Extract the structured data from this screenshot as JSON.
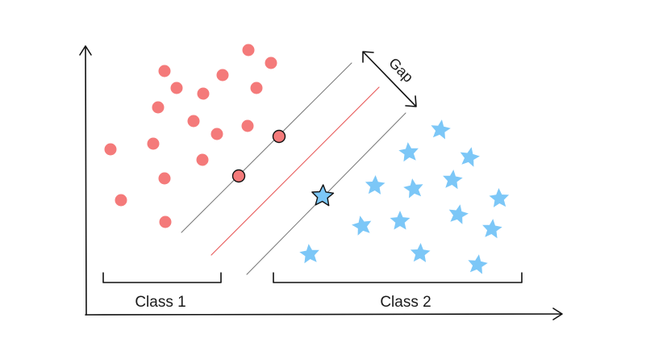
{
  "labels": {
    "class1": "Class 1",
    "class2": "Class 2",
    "gap": "Gap"
  },
  "colors": {
    "class1_fill": "#f47a7a",
    "class2_fill": "#7cc7f7",
    "hyperplane": "#e85a5a",
    "margin_line": "#777777",
    "axis": "#111111",
    "support_stroke": "#111111"
  },
  "icons": {
    "class1_marker": "circle",
    "class2_marker": "star"
  }
}
